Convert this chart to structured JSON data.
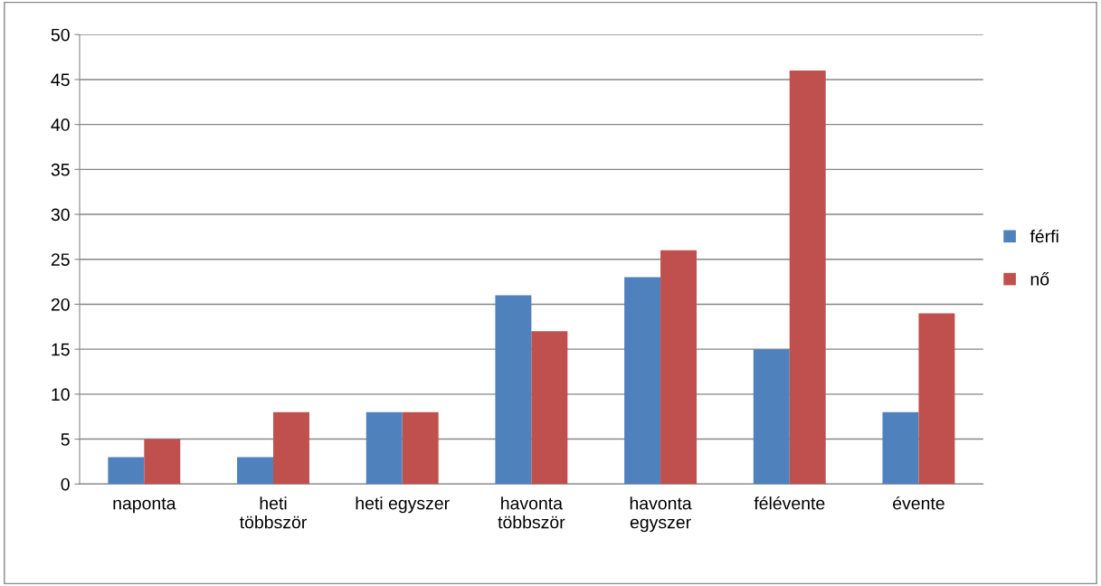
{
  "chart_data": {
    "type": "bar",
    "categories": [
      "naponta",
      "heti\ntöbbször",
      "heti egyszer",
      "havonta\ntöbbször",
      "havonta\negyszer",
      "félévente",
      "évente"
    ],
    "series": [
      {
        "name": "férfi",
        "color": "#4f81bd",
        "values": [
          3,
          3,
          8,
          21,
          23,
          15,
          8
        ]
      },
      {
        "name": "nő",
        "color": "#c0504d",
        "values": [
          5,
          8,
          8,
          17,
          26,
          46,
          19
        ]
      }
    ],
    "ylim": [
      0,
      50
    ],
    "yticks": [
      0,
      5,
      10,
      15,
      20,
      25,
      30,
      35,
      40,
      45,
      50
    ],
    "grid": "y",
    "legend": "right"
  }
}
